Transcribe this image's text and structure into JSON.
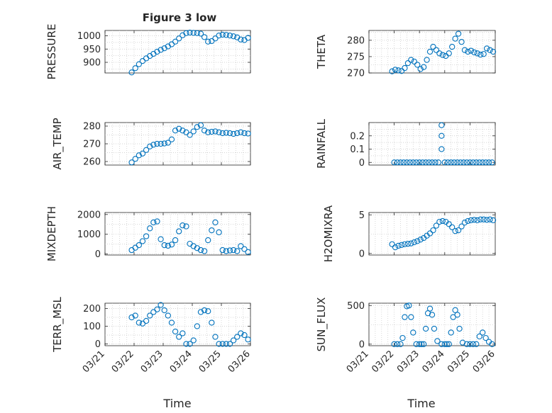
{
  "figure": {
    "title": "Figure 3 low",
    "xlabel": "Time"
  },
  "chart_data": [
    {
      "type": "scatter",
      "ylabel": "PRESSURE",
      "xlim": [
        "03/21",
        "03/26"
      ],
      "ylim": [
        860,
        1020
      ],
      "xticks": [],
      "yticks": [
        "900",
        "950",
        "1000"
      ],
      "marker_color": "#0072BD",
      "x": [
        "03/21 22:00",
        "03/22 01:00",
        "03/22 04:00",
        "03/22 07:00",
        "03/22 10:00",
        "03/22 13:00",
        "03/22 16:00",
        "03/22 19:00",
        "03/22 22:00",
        "03/23 01:00",
        "03/23 04:00",
        "03/23 07:00",
        "03/23 10:00",
        "03/23 13:00",
        "03/23 16:00",
        "03/23 19:00",
        "03/23 22:00",
        "03/24 01:00",
        "03/24 04:00",
        "03/24 07:00",
        "03/24 10:00",
        "03/24 13:00",
        "03/24 16:00",
        "03/24 19:00",
        "03/24 22:00",
        "03/25 01:00",
        "03/25 04:00",
        "03/25 07:00",
        "03/25 10:00",
        "03/25 13:00",
        "03/25 16:00",
        "03/25 19:00",
        "03/25 22:00"
      ],
      "y": [
        862,
        878,
        893,
        905,
        915,
        924,
        932,
        940,
        947,
        953,
        960,
        968,
        978,
        990,
        1002,
        1010,
        1012,
        1011,
        1010,
        1008,
        995,
        978,
        980,
        990,
        1001,
        1004,
        1003,
        1001,
        998,
        994,
        986,
        984,
        992
      ]
    },
    {
      "type": "scatter",
      "ylabel": "THETA",
      "xlim": [
        "03/21",
        "03/26"
      ],
      "ylim": [
        270,
        283
      ],
      "xticks": [],
      "yticks": [
        "270",
        "275",
        "280"
      ],
      "marker_color": "#0072BD",
      "x": [
        "03/21 22:00",
        "03/22 01:00",
        "03/22 04:00",
        "03/22 07:00",
        "03/22 10:00",
        "03/22 13:00",
        "03/22 16:00",
        "03/22 19:00",
        "03/22 22:00",
        "03/23 01:00",
        "03/23 04:00",
        "03/23 07:00",
        "03/23 10:00",
        "03/23 13:00",
        "03/23 16:00",
        "03/23 19:00",
        "03/23 22:00",
        "03/24 01:00",
        "03/24 04:00",
        "03/24 07:00",
        "03/24 10:00",
        "03/24 13:00",
        "03/24 16:00",
        "03/24 19:00",
        "03/24 22:00",
        "03/25 01:00",
        "03/25 04:00",
        "03/25 07:00",
        "03/25 10:00",
        "03/25 13:00",
        "03/25 16:00",
        "03/25 19:00",
        "03/25 22:00"
      ],
      "y": [
        270.5,
        271.0,
        270.8,
        270.6,
        271.5,
        273.0,
        274.0,
        273.5,
        272.5,
        271.2,
        271.8,
        274.0,
        276.5,
        278.0,
        277.0,
        276.0,
        275.5,
        275.2,
        276.0,
        278.0,
        280.5,
        282.0,
        279.5,
        277.0,
        276.5,
        276.8,
        276.3,
        276.0,
        275.6,
        275.8,
        277.5,
        277.0,
        276.5
      ]
    },
    {
      "type": "scatter",
      "ylabel": "AIR_TEMP",
      "xlim": [
        "03/21",
        "03/26"
      ],
      "ylim": [
        258,
        282
      ],
      "xticks": [],
      "yticks": [
        "260",
        "270",
        "280"
      ],
      "marker_color": "#0072BD",
      "x": [
        "03/21 22:00",
        "03/22 01:00",
        "03/22 04:00",
        "03/22 07:00",
        "03/22 10:00",
        "03/22 13:00",
        "03/22 16:00",
        "03/22 19:00",
        "03/22 22:00",
        "03/23 01:00",
        "03/23 04:00",
        "03/23 07:00",
        "03/23 10:00",
        "03/23 13:00",
        "03/23 16:00",
        "03/23 19:00",
        "03/23 22:00",
        "03/24 01:00",
        "03/24 04:00",
        "03/24 07:00",
        "03/24 10:00",
        "03/24 13:00",
        "03/24 16:00",
        "03/24 19:00",
        "03/24 22:00",
        "03/25 01:00",
        "03/25 04:00",
        "03/25 07:00",
        "03/25 10:00",
        "03/25 13:00",
        "03/25 16:00",
        "03/25 19:00",
        "03/25 22:00"
      ],
      "y": [
        259.5,
        261.5,
        263.5,
        264.5,
        266.5,
        268.5,
        269.5,
        270.0,
        270.0,
        270.2,
        270.6,
        272.5,
        277.5,
        278.5,
        277.5,
        276.5,
        275.0,
        277.0,
        279.5,
        280.5,
        277.5,
        276.5,
        276.8,
        277.0,
        276.5,
        276.0,
        276.2,
        276.0,
        275.6,
        276.0,
        276.5,
        276.0,
        275.8
      ]
    },
    {
      "type": "scatter",
      "ylabel": "RAINFALL",
      "xlim": [
        "03/21",
        "03/26"
      ],
      "ylim": [
        -0.02,
        0.3
      ],
      "xticks": [],
      "yticks": [
        "0",
        "0.1",
        "0.2"
      ],
      "marker_color": "#0072BD",
      "x": [
        "03/22 00:00",
        "03/22 03:00",
        "03/22 06:00",
        "03/22 09:00",
        "03/22 12:00",
        "03/22 15:00",
        "03/22 18:00",
        "03/22 21:00",
        "03/23 00:00",
        "03/23 03:00",
        "03/23 06:00",
        "03/23 09:00",
        "03/23 12:00",
        "03/23 15:00",
        "03/23 18:00",
        "03/23 21:00",
        "03/23 21:00",
        "03/23 21:00",
        "03/24 00:00",
        "03/24 03:00",
        "03/24 06:00",
        "03/24 09:00",
        "03/24 12:00",
        "03/24 15:00",
        "03/24 18:00",
        "03/24 21:00",
        "03/25 00:00",
        "03/25 03:00",
        "03/25 06:00",
        "03/25 09:00",
        "03/25 12:00",
        "03/25 15:00",
        "03/25 18:00",
        "03/25 21:00"
      ],
      "y": [
        0,
        0,
        0,
        0,
        0,
        0,
        0,
        0,
        0,
        0,
        0,
        0,
        0,
        0,
        0,
        0.28,
        0.2,
        0.1,
        0,
        0,
        0,
        0,
        0,
        0,
        0,
        0,
        0,
        0,
        0,
        0,
        0,
        0,
        0,
        0
      ]
    },
    {
      "type": "scatter",
      "ylabel": "MIXDEPTH",
      "xlim": [
        "03/21",
        "03/26"
      ],
      "ylim": [
        -50,
        2100
      ],
      "xticks": [],
      "yticks": [
        "0",
        "1000",
        "2000"
      ],
      "marker_color": "#0072BD",
      "x": [
        "03/21 22:00",
        "03/22 01:00",
        "03/22 04:00",
        "03/22 07:00",
        "03/22 10:00",
        "03/22 13:00",
        "03/22 16:00",
        "03/22 19:00",
        "03/22 22:00",
        "03/23 01:00",
        "03/23 04:00",
        "03/23 07:00",
        "03/23 10:00",
        "03/23 13:00",
        "03/23 16:00",
        "03/23 19:00",
        "03/23 22:00",
        "03/24 01:00",
        "03/24 04:00",
        "03/24 07:00",
        "03/24 10:00",
        "03/24 13:00",
        "03/24 16:00",
        "03/24 19:00",
        "03/24 22:00",
        "03/25 01:00",
        "03/25 04:00",
        "03/25 07:00",
        "03/25 10:00",
        "03/25 13:00",
        "03/25 16:00",
        "03/25 19:00",
        "03/25 22:00"
      ],
      "y": [
        200,
        320,
        450,
        650,
        900,
        1300,
        1600,
        1650,
        750,
        450,
        420,
        480,
        700,
        1150,
        1450,
        1400,
        520,
        400,
        300,
        200,
        150,
        700,
        1200,
        1600,
        1100,
        200,
        150,
        180,
        200,
        150,
        400,
        250,
        100
      ]
    },
    {
      "type": "scatter",
      "ylabel": "H2OMIXRA",
      "xlim": [
        "03/21",
        "03/26"
      ],
      "ylim": [
        -0.2,
        5.3
      ],
      "xticks": [],
      "yticks": [
        "0",
        "5"
      ],
      "marker_color": "#0072BD",
      "x": [
        "03/21 22:00",
        "03/22 01:00",
        "03/22 04:00",
        "03/22 07:00",
        "03/22 10:00",
        "03/22 13:00",
        "03/22 16:00",
        "03/22 19:00",
        "03/22 22:00",
        "03/23 01:00",
        "03/23 04:00",
        "03/23 07:00",
        "03/23 10:00",
        "03/23 13:00",
        "03/23 16:00",
        "03/23 19:00",
        "03/23 22:00",
        "03/24 01:00",
        "03/24 04:00",
        "03/24 07:00",
        "03/24 10:00",
        "03/24 13:00",
        "03/24 16:00",
        "03/24 19:00",
        "03/24 22:00",
        "03/25 01:00",
        "03/25 04:00",
        "03/25 07:00",
        "03/25 10:00",
        "03/25 13:00",
        "03/25 16:00",
        "03/25 19:00",
        "03/25 22:00"
      ],
      "y": [
        1.2,
        0.8,
        1.0,
        1.1,
        1.2,
        1.25,
        1.3,
        1.45,
        1.6,
        1.8,
        2.0,
        2.3,
        2.6,
        3.0,
        3.6,
        4.1,
        4.2,
        4.1,
        3.8,
        3.4,
        2.9,
        3.0,
        3.5,
        4.0,
        4.2,
        4.3,
        4.35,
        4.3,
        4.4,
        4.4,
        4.35,
        4.4,
        4.3
      ]
    },
    {
      "type": "scatter",
      "ylabel": "TERR_MSL",
      "xlim": [
        "03/21",
        "03/26"
      ],
      "ylim": [
        -10,
        230
      ],
      "xticks": [
        "03/21",
        "03/22",
        "03/23",
        "03/24",
        "03/25",
        "03/26"
      ],
      "yticks": [
        "0",
        "100",
        "200"
      ],
      "marker_color": "#0072BD",
      "x": [
        "03/21 22:00",
        "03/22 01:00",
        "03/22 04:00",
        "03/22 07:00",
        "03/22 10:00",
        "03/22 13:00",
        "03/22 16:00",
        "03/22 19:00",
        "03/22 22:00",
        "03/23 01:00",
        "03/23 04:00",
        "03/23 07:00",
        "03/23 10:00",
        "03/23 13:00",
        "03/23 16:00",
        "03/23 19:00",
        "03/23 22:00",
        "03/24 01:00",
        "03/24 04:00",
        "03/24 07:00",
        "03/24 10:00",
        "03/24 13:00",
        "03/24 16:00",
        "03/24 19:00",
        "03/24 22:00",
        "03/25 01:00",
        "03/25 04:00",
        "03/25 07:00",
        "03/25 10:00",
        "03/25 13:00",
        "03/25 16:00",
        "03/25 19:00",
        "03/25 22:00"
      ],
      "y": [
        150,
        160,
        120,
        115,
        130,
        160,
        180,
        195,
        220,
        190,
        160,
        120,
        70,
        40,
        60,
        0,
        0,
        20,
        100,
        180,
        190,
        185,
        120,
        40,
        0,
        0,
        0,
        0,
        20,
        40,
        60,
        50,
        25
      ]
    },
    {
      "type": "scatter",
      "ylabel": "SUN_FLUX",
      "xlim": [
        "03/21",
        "03/26"
      ],
      "ylim": [
        -20,
        530
      ],
      "xticks": [
        "03/21",
        "03/22",
        "03/23",
        "03/24",
        "03/25",
        "03/26"
      ],
      "yticks": [
        "0",
        "500"
      ],
      "marker_color": "#0072BD",
      "x": [
        "03/22 00:00",
        "03/22 03:00",
        "03/22 06:00",
        "03/22 08:00",
        "03/22 10:00",
        "03/22 12:00",
        "03/22 14:00",
        "03/22 16:00",
        "03/22 18:00",
        "03/22 21:00",
        "03/23 00:00",
        "03/23 02:00",
        "03/23 04:00",
        "03/23 06:00",
        "03/23 08:00",
        "03/23 10:00",
        "03/23 12:00",
        "03/23 14:00",
        "03/23 17:00",
        "03/23 21:00",
        "03/24 00:00",
        "03/24 02:00",
        "03/24 04:00",
        "03/24 06:00",
        "03/24 08:00",
        "03/24 10:00",
        "03/24 12:00",
        "03/24 14:00",
        "03/24 17:00",
        "03/24 21:00",
        "03/25 00:00",
        "03/25 03:00",
        "03/25 06:00",
        "03/25 09:00",
        "03/25 12:00",
        "03/25 15:00",
        "03/25 18:00",
        "03/25 21:00"
      ],
      "y": [
        0,
        0,
        0,
        80,
        350,
        490,
        500,
        350,
        150,
        0,
        0,
        0,
        0,
        200,
        400,
        460,
        380,
        200,
        40,
        0,
        0,
        0,
        0,
        150,
        350,
        440,
        380,
        200,
        20,
        0,
        0,
        0,
        0,
        100,
        150,
        80,
        30,
        0
      ]
    }
  ]
}
